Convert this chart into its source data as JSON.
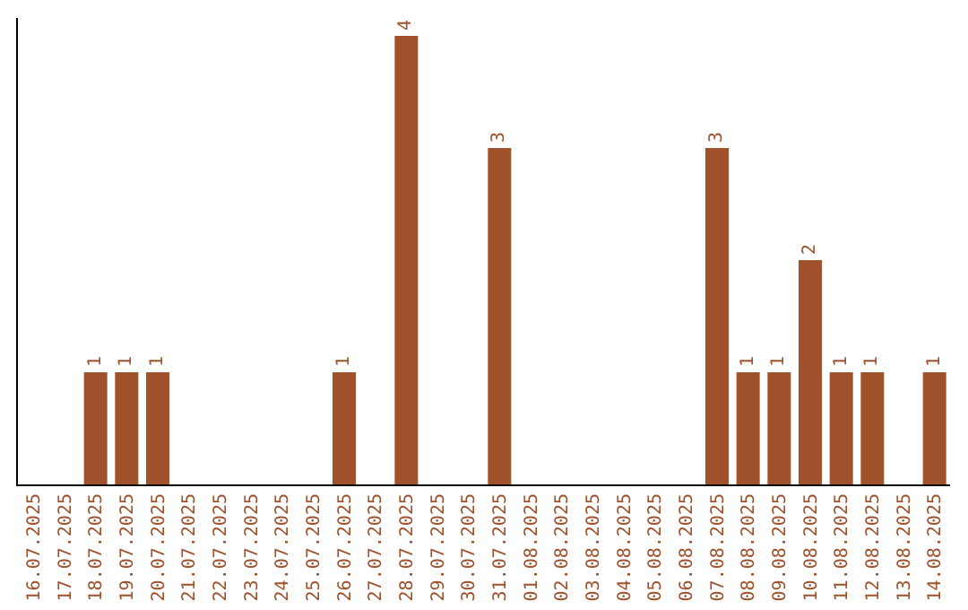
{
  "chart_data": {
    "type": "bar",
    "categories": [
      "16.07.2025",
      "17.07.2025",
      "18.07.2025",
      "19.07.2025",
      "20.07.2025",
      "21.07.2025",
      "22.07.2025",
      "23.07.2025",
      "24.07.2025",
      "25.07.2025",
      "26.07.2025",
      "27.07.2025",
      "28.07.2025",
      "29.07.2025",
      "30.07.2025",
      "31.07.2025",
      "01.08.2025",
      "02.08.2025",
      "03.08.2025",
      "04.08.2025",
      "05.08.2025",
      "06.08.2025",
      "07.08.2025",
      "08.08.2025",
      "09.08.2025",
      "10.08.2025",
      "11.08.2025",
      "12.08.2025",
      "13.08.2025",
      "14.08.2025"
    ],
    "values": [
      0,
      0,
      1,
      1,
      1,
      0,
      0,
      0,
      0,
      0,
      1,
      0,
      4,
      0,
      0,
      3,
      0,
      0,
      0,
      0,
      0,
      0,
      3,
      1,
      1,
      2,
      1,
      1,
      0,
      1
    ],
    "value_labels": [
      null,
      null,
      "1",
      "1",
      "1",
      null,
      null,
      null,
      null,
      null,
      "1",
      null,
      "4",
      null,
      null,
      "3",
      null,
      null,
      null,
      null,
      null,
      null,
      "3",
      "1",
      "1",
      "2",
      "1",
      "1",
      null,
      "1"
    ],
    "color": "#a0522d",
    "tick_labels": "x",
    "grid": false,
    "legend": false
  }
}
